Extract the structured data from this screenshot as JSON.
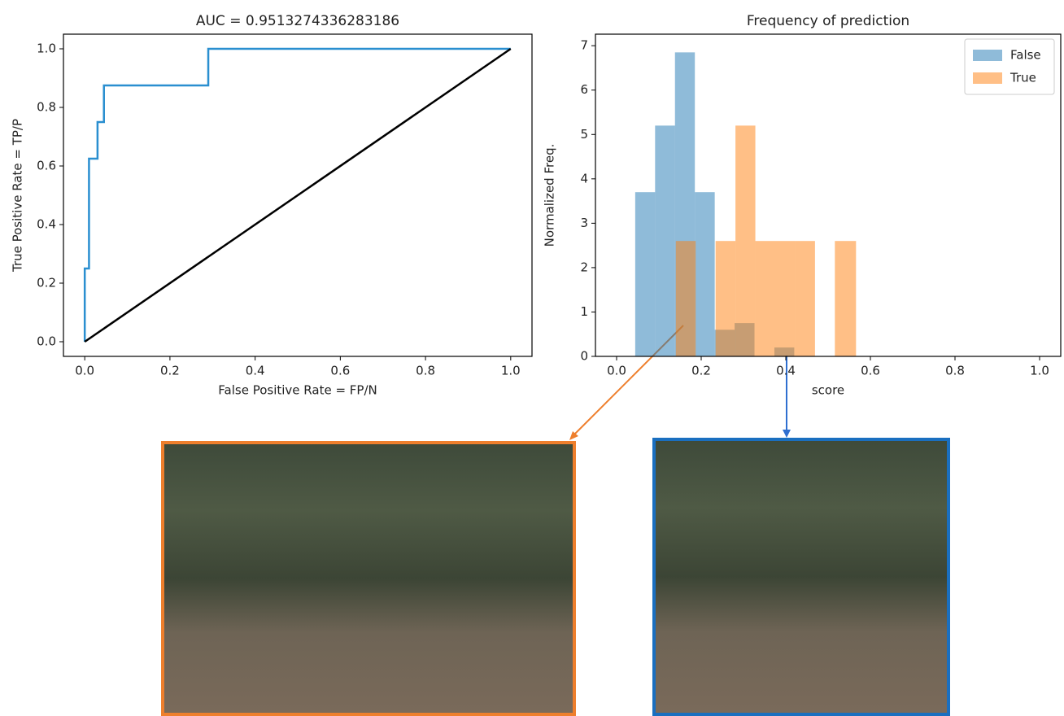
{
  "chart_data": [
    {
      "type": "line",
      "title": "AUC = 0.9513274336283186",
      "xlabel": "False Positive Rate = FP/N",
      "ylabel": "True Positive Rate = TP/P",
      "xlim": [
        -0.05,
        1.05
      ],
      "ylim": [
        -0.05,
        1.05
      ],
      "xticks": [
        {
          "value": 0,
          "label": "0.0"
        },
        {
          "value": 0.2,
          "label": "0.2"
        },
        {
          "value": 0.4,
          "label": "0.4"
        },
        {
          "value": 0.6,
          "label": "0.6"
        },
        {
          "value": 0.8,
          "label": "0.8"
        },
        {
          "value": 1,
          "label": "1.0"
        }
      ],
      "yticks": [
        {
          "value": 0,
          "label": "0.0"
        },
        {
          "value": 0.2,
          "label": "0.2"
        },
        {
          "value": 0.4,
          "label": "0.4"
        },
        {
          "value": 0.6,
          "label": "0.6"
        },
        {
          "value": 0.8,
          "label": "0.8"
        },
        {
          "value": 1,
          "label": "1.0"
        }
      ],
      "series": [
        {
          "color": "#2a8fd0",
          "x": [
            0,
            0,
            0.01,
            0.01,
            0.03,
            0.03,
            0.045,
            0.045,
            0.29,
            0.29,
            1
          ],
          "values": [
            0,
            0.25,
            0.25,
            0.625,
            0.625,
            0.75,
            0.75,
            0.875,
            0.875,
            1,
            1
          ]
        },
        {
          "color": "#000000",
          "x": [
            0,
            1
          ],
          "values": [
            0,
            1
          ]
        }
      ]
    },
    {
      "type": "histogram",
      "title": "Frequency of prediction",
      "xlabel": "score",
      "ylabel": "Normalized Freq.",
      "xlim": [
        -0.05,
        1.05
      ],
      "ylim": [
        0,
        7.26
      ],
      "xticks": [
        {
          "value": 0,
          "label": "0.0"
        },
        {
          "value": 0.2,
          "label": "0.2"
        },
        {
          "value": 0.4,
          "label": "0.4"
        },
        {
          "value": 0.6,
          "label": "0.6"
        },
        {
          "value": 0.8,
          "label": "0.8"
        },
        {
          "value": 1,
          "label": "1.0"
        }
      ],
      "yticks": [
        0,
        1,
        2,
        3,
        4,
        5,
        6,
        7
      ],
      "legend": "upper right",
      "series": [
        {
          "name": "False",
          "color": "#1f77b4",
          "bins": [
            0.044,
            0.091,
            0.138,
            0.185,
            0.232,
            0.279,
            0.326,
            0.373,
            0.42
          ],
          "values": [
            3.7,
            5.2,
            6.85,
            3.7,
            0.6,
            0.75,
            0,
            0.2
          ]
        },
        {
          "name": "True",
          "color": "#ff7f0e",
          "bins": [
            0.14,
            0.187,
            0.234,
            0.281,
            0.328,
            0.375,
            0.422,
            0.469,
            0.516,
            0.566
          ],
          "values": [
            2.6,
            0,
            2.6,
            5.2,
            2.6,
            2.6,
            2.6,
            0,
            2.6
          ]
        }
      ]
    }
  ]
}
